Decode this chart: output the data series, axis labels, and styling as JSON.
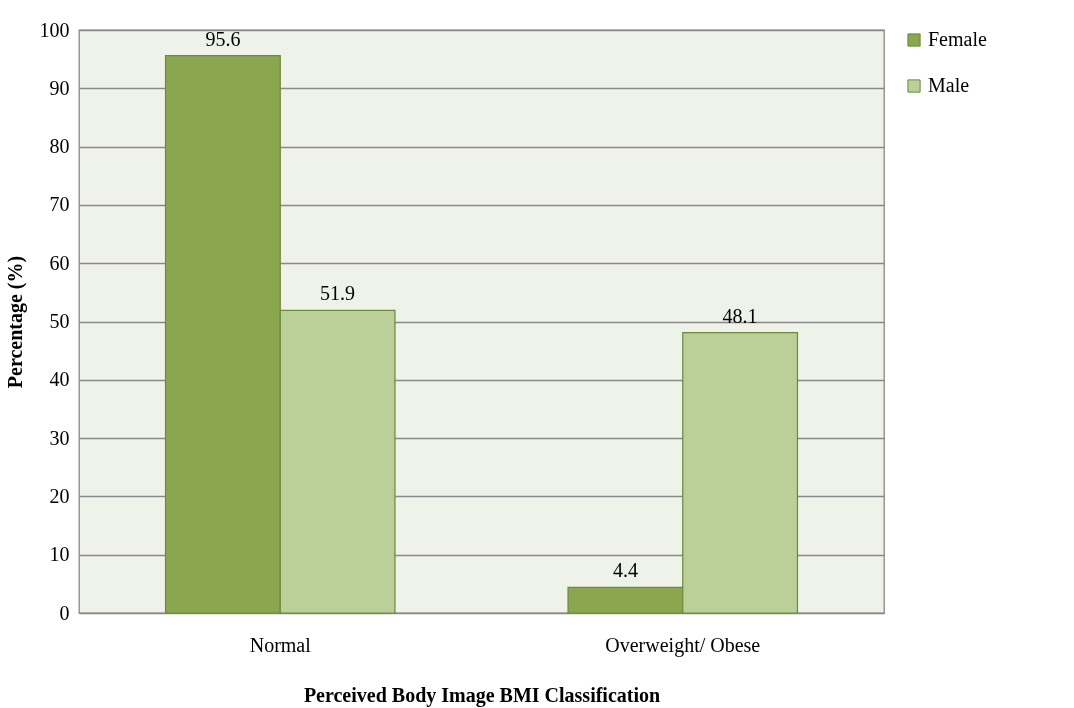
{
  "chart_data": {
    "type": "bar",
    "xlabel": "Perceived Body Image BMI Classification",
    "ylabel": "Percentage (%)",
    "categories": [
      "Normal",
      "Overweight/ Obese"
    ],
    "series": [
      {
        "name": "Female",
        "color": "#8aa64e",
        "values": [
          95.6,
          4.4
        ]
      },
      {
        "name": "Male",
        "color": "#bad098",
        "values": [
          51.9,
          48.1
        ]
      }
    ],
    "ylim": [
      0,
      100
    ],
    "yticks": [
      0,
      10,
      20,
      30,
      40,
      50,
      60,
      70,
      80,
      90,
      100
    ],
    "grid": "y",
    "legend": "top right",
    "data_labels": true
  }
}
